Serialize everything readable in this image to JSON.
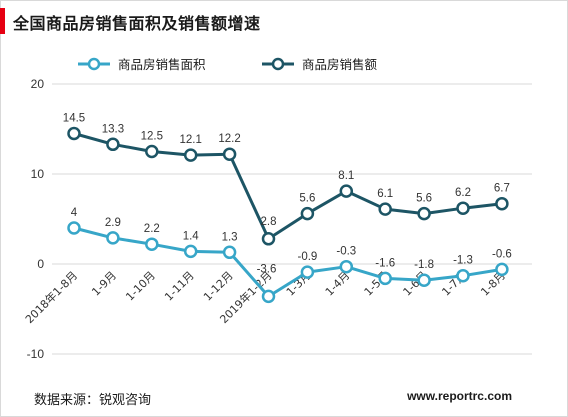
{
  "title": "全国商品房销售面积及销售额增速",
  "source_text": "数据来源：锐观咨询",
  "website": "www.reportrc.com",
  "colors": {
    "accent": "#e60012",
    "area_series": "#37a6c8",
    "amount_series": "#1d5565",
    "grid": "#d9d9d9"
  },
  "chart_data": {
    "type": "line",
    "title": "全国商品房销售面积及销售额增速",
    "xlabel": "",
    "ylabel": "",
    "ylim": [
      -10,
      20
    ],
    "yticks": [
      -10,
      0,
      10,
      20
    ],
    "grid": true,
    "legend": "top",
    "categories": [
      "2018年1-8月",
      "1-9月",
      "1-10月",
      "1-11月",
      "1-12月",
      "2019年1-2月",
      "1-3月",
      "1-4月",
      "1-5月",
      "1-6月",
      "1-7月",
      "1-8月"
    ],
    "series": [
      {
        "name": "商品房销售面积",
        "color": "#37a6c8",
        "values": [
          4,
          2.9,
          2.2,
          1.4,
          1.3,
          -3.6,
          -0.9,
          -0.3,
          -1.6,
          -1.8,
          -1.3,
          -0.6
        ],
        "labels": [
          "4",
          "2.9",
          "2.2",
          "1.4",
          "1.3",
          "-3.6",
          "-0.9",
          "-0.3",
          "-1.6",
          "-1.8",
          "-1.3",
          "-0.6"
        ]
      },
      {
        "name": "商品房销售额",
        "color": "#1d5565",
        "values": [
          14.5,
          13.3,
          12.5,
          12.1,
          12.2,
          2.8,
          5.6,
          8.1,
          6.1,
          5.6,
          6.2,
          6.7
        ],
        "labels": [
          "14.5",
          "13.3",
          "12.5",
          "12.1",
          "12.2",
          "2.8",
          "5.6",
          "8.1",
          "6.1",
          "5.6",
          "6.2",
          "6.7"
        ]
      }
    ]
  }
}
